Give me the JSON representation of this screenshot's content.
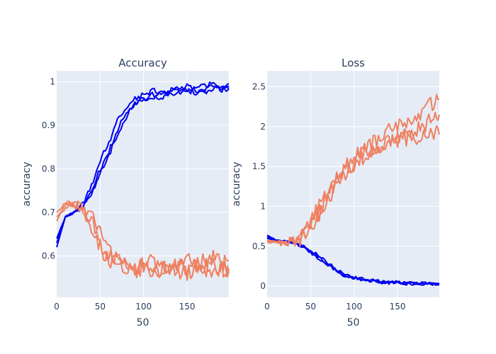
{
  "chart_data": [
    {
      "type": "line",
      "title": "Accuracy",
      "xlabel": "50",
      "ylabel": "accuracy",
      "xlim": [
        0,
        198
      ],
      "ylim": [
        0.505,
        1.025
      ],
      "xticks": [
        0,
        50,
        100,
        150
      ],
      "yticks": [
        0.6,
        0.7,
        0.8,
        0.9,
        1
      ],
      "ytick_labels": [
        "0.6",
        "0.7",
        "0.8",
        "0.9",
        "1"
      ],
      "grid": true,
      "series": [
        {
          "color": "#0000ee",
          "x": [
            0,
            10,
            20,
            30,
            40,
            50,
            60,
            70,
            80,
            90,
            100,
            110,
            120,
            130,
            140,
            150,
            160,
            170,
            180,
            190,
            198
          ],
          "y": [
            0.62,
            0.69,
            0.7,
            0.72,
            0.76,
            0.82,
            0.86,
            0.91,
            0.94,
            0.96,
            0.97,
            0.98,
            0.975,
            0.98,
            0.985,
            0.99,
            0.985,
            0.99,
            0.995,
            0.99,
            0.995
          ]
        },
        {
          "color": "#0000ee",
          "x": [
            0,
            10,
            20,
            30,
            40,
            50,
            60,
            70,
            80,
            90,
            100,
            110,
            120,
            130,
            140,
            150,
            160,
            170,
            180,
            190,
            198
          ],
          "y": [
            0.63,
            0.69,
            0.7,
            0.71,
            0.75,
            0.8,
            0.84,
            0.89,
            0.93,
            0.95,
            0.96,
            0.97,
            0.96,
            0.975,
            0.98,
            0.98,
            0.975,
            0.98,
            0.99,
            0.985,
            0.99
          ]
        },
        {
          "color": "#0000ee",
          "x": [
            0,
            10,
            20,
            30,
            40,
            50,
            60,
            70,
            80,
            90,
            100,
            110,
            120,
            130,
            140,
            150,
            160,
            170,
            180,
            190,
            198
          ],
          "y": [
            0.64,
            0.69,
            0.7,
            0.71,
            0.74,
            0.79,
            0.83,
            0.88,
            0.92,
            0.95,
            0.96,
            0.965,
            0.97,
            0.97,
            0.975,
            0.975,
            0.98,
            0.975,
            0.985,
            0.98,
            0.985
          ]
        },
        {
          "color": "#ef8060",
          "x": [
            0,
            10,
            20,
            30,
            40,
            50,
            60,
            70,
            80,
            90,
            100,
            110,
            120,
            130,
            140,
            150,
            160,
            170,
            180,
            190,
            198
          ],
          "y": [
            0.68,
            0.72,
            0.72,
            0.7,
            0.68,
            0.63,
            0.6,
            0.59,
            0.58,
            0.58,
            0.57,
            0.59,
            0.58,
            0.57,
            0.58,
            0.59,
            0.58,
            0.59,
            0.6,
            0.58,
            0.59
          ]
        },
        {
          "color": "#ef8060",
          "x": [
            0,
            10,
            20,
            30,
            40,
            50,
            60,
            70,
            80,
            90,
            100,
            110,
            120,
            130,
            140,
            150,
            160,
            170,
            180,
            190,
            198
          ],
          "y": [
            0.69,
            0.71,
            0.72,
            0.71,
            0.69,
            0.65,
            0.61,
            0.6,
            0.59,
            0.57,
            0.58,
            0.56,
            0.57,
            0.58,
            0.56,
            0.57,
            0.58,
            0.56,
            0.58,
            0.57,
            0.57
          ]
        },
        {
          "color": "#ef8060",
          "x": [
            0,
            10,
            20,
            30,
            40,
            50,
            60,
            70,
            80,
            90,
            100,
            110,
            120,
            130,
            140,
            150,
            160,
            170,
            180,
            190,
            198
          ],
          "y": [
            0.7,
            0.72,
            0.71,
            0.7,
            0.67,
            0.62,
            0.59,
            0.58,
            0.57,
            0.56,
            0.57,
            0.56,
            0.55,
            0.57,
            0.58,
            0.56,
            0.57,
            0.58,
            0.56,
            0.57,
            0.56
          ]
        }
      ]
    },
    {
      "type": "line",
      "title": "Loss",
      "xlabel": "50",
      "ylabel": "accuracy",
      "xlim": [
        0,
        198
      ],
      "ylim": [
        -0.14,
        2.7
      ],
      "xticks": [
        0,
        50,
        100,
        150
      ],
      "yticks": [
        0,
        0.5,
        1,
        1.5,
        2,
        2.5
      ],
      "ytick_labels": [
        "0",
        "0.5",
        "1",
        "1.5",
        "2",
        "2.5"
      ],
      "grid": true,
      "series": [
        {
          "color": "#0000ee",
          "x": [
            0,
            10,
            20,
            30,
            40,
            50,
            60,
            70,
            80,
            90,
            100,
            110,
            120,
            130,
            140,
            150,
            160,
            170,
            180,
            190,
            198
          ],
          "y": [
            0.64,
            0.58,
            0.57,
            0.56,
            0.52,
            0.45,
            0.38,
            0.29,
            0.21,
            0.14,
            0.11,
            0.09,
            0.08,
            0.06,
            0.05,
            0.05,
            0.04,
            0.04,
            0.04,
            0.03,
            0.03
          ]
        },
        {
          "color": "#0000ee",
          "x": [
            0,
            10,
            20,
            30,
            40,
            50,
            60,
            70,
            80,
            90,
            100,
            110,
            120,
            130,
            140,
            150,
            160,
            170,
            180,
            190,
            198
          ],
          "y": [
            0.62,
            0.58,
            0.56,
            0.55,
            0.5,
            0.42,
            0.34,
            0.26,
            0.19,
            0.13,
            0.1,
            0.08,
            0.07,
            0.06,
            0.05,
            0.04,
            0.04,
            0.03,
            0.03,
            0.03,
            0.02
          ]
        },
        {
          "color": "#0000ee",
          "x": [
            0,
            10,
            20,
            30,
            40,
            50,
            60,
            70,
            80,
            90,
            100,
            110,
            120,
            130,
            140,
            150,
            160,
            170,
            180,
            190,
            198
          ],
          "y": [
            0.6,
            0.57,
            0.56,
            0.55,
            0.51,
            0.44,
            0.36,
            0.27,
            0.2,
            0.14,
            0.1,
            0.08,
            0.06,
            0.05,
            0.04,
            0.04,
            0.03,
            0.03,
            0.02,
            0.02,
            0.02
          ]
        },
        {
          "color": "#ef8060",
          "x": [
            0,
            10,
            20,
            30,
            40,
            50,
            60,
            70,
            80,
            90,
            100,
            110,
            120,
            130,
            140,
            150,
            160,
            170,
            180,
            190,
            198
          ],
          "y": [
            0.58,
            0.55,
            0.55,
            0.56,
            0.62,
            0.8,
            1.0,
            1.2,
            1.35,
            1.5,
            1.6,
            1.75,
            1.8,
            1.85,
            1.95,
            2.0,
            2.05,
            2.1,
            2.2,
            2.3,
            2.35
          ]
        },
        {
          "color": "#ef8060",
          "x": [
            0,
            10,
            20,
            30,
            40,
            50,
            60,
            70,
            80,
            90,
            100,
            110,
            120,
            130,
            140,
            150,
            160,
            170,
            180,
            190,
            198
          ],
          "y": [
            0.56,
            0.55,
            0.54,
            0.56,
            0.6,
            0.75,
            0.95,
            1.15,
            1.3,
            1.45,
            1.55,
            1.65,
            1.7,
            1.75,
            1.8,
            1.85,
            1.9,
            1.95,
            2.0,
            2.1,
            2.15
          ]
        },
        {
          "color": "#ef8060",
          "x": [
            0,
            10,
            20,
            30,
            40,
            50,
            60,
            70,
            80,
            90,
            100,
            110,
            120,
            130,
            140,
            150,
            160,
            170,
            180,
            190,
            198
          ],
          "y": [
            0.55,
            0.54,
            0.55,
            0.55,
            0.58,
            0.7,
            0.9,
            1.1,
            1.25,
            1.4,
            1.5,
            1.6,
            1.65,
            1.7,
            1.75,
            1.8,
            1.85,
            1.85,
            1.9,
            1.95,
            1.9
          ]
        }
      ]
    }
  ]
}
